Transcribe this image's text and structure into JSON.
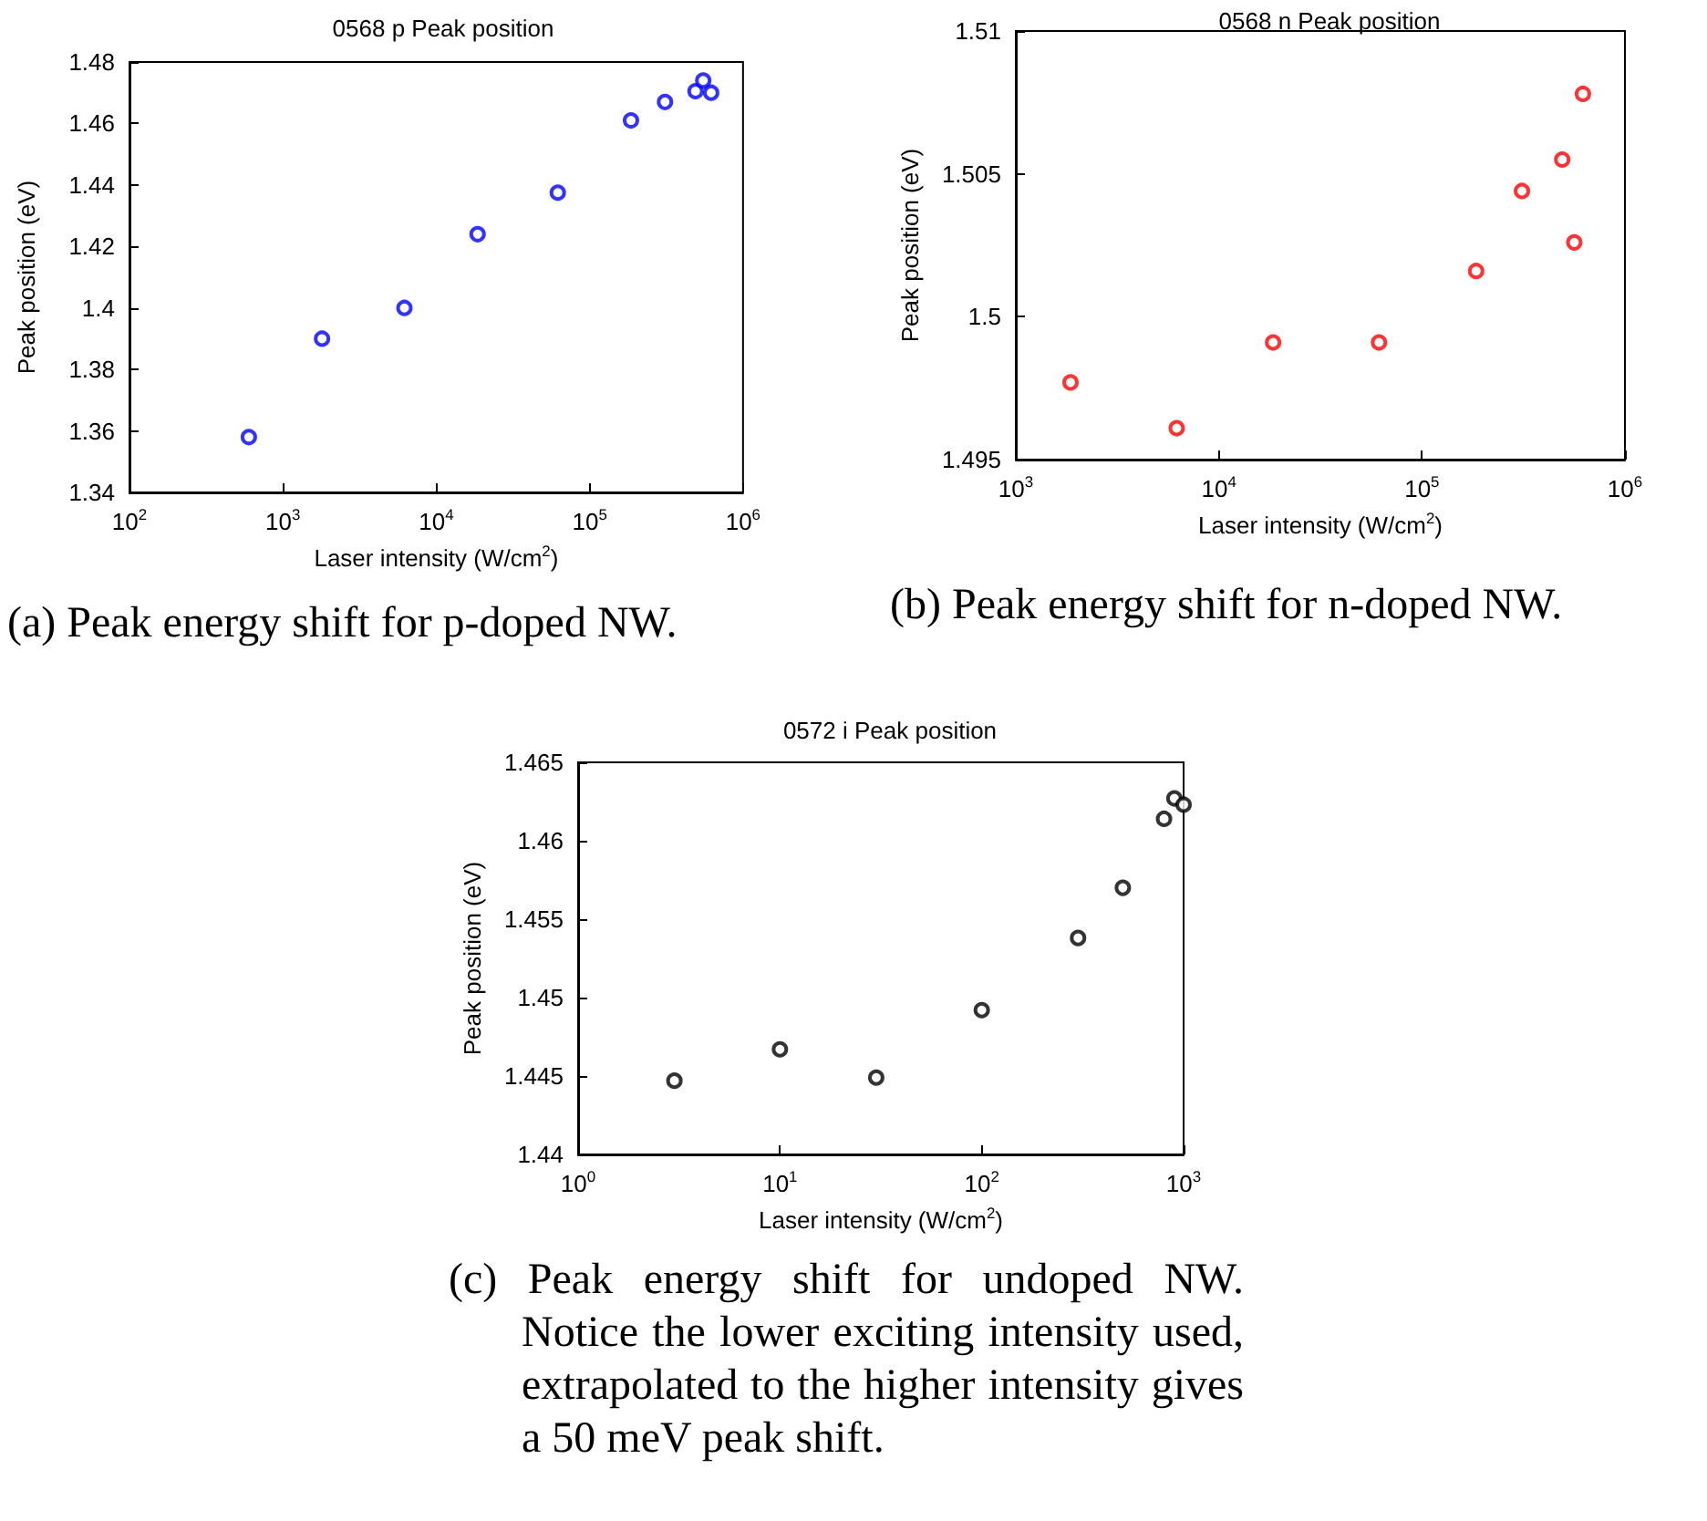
{
  "chart_data": [
    {
      "type": "scatter",
      "title": "0568 p Peak position",
      "xlabel": "Laser intensity (W/cm$^{2}$)",
      "ylabel": "Peak position (eV)",
      "log": "x",
      "marker": "circle",
      "grid": false,
      "x": [
        600,
        1800,
        6200,
        18600,
        62000,
        186000,
        310000,
        490000,
        550000,
        620000
      ],
      "series": [
        {
          "color": "#0000ff",
          "values": [
            1.358,
            1.39,
            1.4,
            1.424,
            1.4375,
            1.461,
            1.467,
            1.4705,
            1.474,
            1.47
          ]
        }
      ],
      "xlim": [
        100,
        1000000
      ],
      "xticks": [
        {
          "value": 100,
          "label": "10$^{2}$"
        },
        {
          "value": 1000,
          "label": "10$^{3}$"
        },
        {
          "value": 10000,
          "label": "10$^{4}$"
        },
        {
          "value": 100000,
          "label": "10$^{5}$"
        },
        {
          "value": 1000000,
          "label": "10$^{6}$"
        }
      ],
      "ylim": [
        1.34,
        1.48
      ],
      "yticks": [
        1.34,
        1.36,
        1.38,
        1.4,
        1.42,
        1.44,
        1.46,
        1.48
      ],
      "annotations": [
        "(a) Peak energy shift for p-doped NW."
      ]
    },
    {
      "type": "scatter",
      "title": "0568 n Peak position",
      "xlabel": "Laser intensity (W/cm$^{2}$)",
      "ylabel": "Peak position (eV)",
      "log": "x",
      "marker": "circle",
      "grid": false,
      "x": [
        1860,
        6200,
        18500,
        61500,
        185000,
        311000,
        491000,
        563000,
        621000
      ],
      "series": [
        {
          "color": "#ff0000",
          "values": [
            1.4977,
            1.4961,
            1.4991,
            1.4991,
            1.5016,
            1.5044,
            1.5055,
            1.5026,
            1.5078
          ]
        }
      ],
      "xlim": [
        1000,
        1000000
      ],
      "xticks": [
        {
          "value": 1000,
          "label": "10$^{3}$"
        },
        {
          "value": 10000,
          "label": "10$^{4}$"
        },
        {
          "value": 100000,
          "label": "10$^{5}$"
        },
        {
          "value": 1000000,
          "label": "10$^{6}$"
        }
      ],
      "ylim": [
        1.495,
        1.51
      ],
      "yticks": [
        1.495,
        1.5,
        1.505,
        1.51
      ],
      "annotations": [
        "(b) Peak energy shift for n-doped NW."
      ]
    },
    {
      "type": "scatter",
      "title": "0572 i Peak position",
      "xlabel": "Laser intensity (W/cm$^{2}$)",
      "ylabel": "Peak position (eV)",
      "log": "x",
      "marker": "circle",
      "grid": false,
      "x": [
        3,
        10,
        30,
        100,
        300,
        500,
        800,
        900,
        1000
      ],
      "series": [
        {
          "color": "#000000",
          "values": [
            1.4447,
            1.4467,
            1.4449,
            1.4492,
            1.4538,
            1.457,
            1.4614,
            1.4627,
            1.4623
          ]
        }
      ],
      "xlim": [
        1,
        1000
      ],
      "xticks": [
        {
          "value": 1,
          "label": "10$^{0}$"
        },
        {
          "value": 10,
          "label": "10$^{1}$"
        },
        {
          "value": 100,
          "label": "10$^{2}$"
        },
        {
          "value": 1000,
          "label": "10$^{3}$"
        }
      ],
      "ylim": [
        1.44,
        1.465
      ],
      "yticks": [
        1.44,
        1.445,
        1.45,
        1.455,
        1.46,
        1.465
      ],
      "annotations": [
        "(c) Peak energy shift for undoped NW. Notice the lower exciting intensity used, extrapolated to the higher intensity gives a 50 meV peak shift."
      ]
    }
  ]
}
